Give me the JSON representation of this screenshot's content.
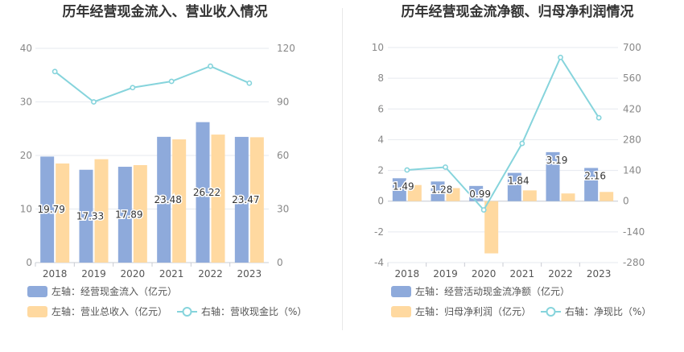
{
  "chart_data": [
    {
      "type": "bar",
      "title": "历年经营现金流入、营业收入情况",
      "categories": [
        "2018",
        "2019",
        "2020",
        "2021",
        "2022",
        "2023"
      ],
      "y_left": {
        "ticks": [
          "0",
          "10",
          "20",
          "30",
          "40"
        ],
        "range": [
          0,
          40
        ]
      },
      "y_right": {
        "ticks": [
          "0",
          "30",
          "60",
          "90",
          "120"
        ],
        "range": [
          0,
          120
        ]
      },
      "series": [
        {
          "name": "左轴：经营现金流入（亿元）",
          "type": "bar",
          "axis": "left",
          "color": "#8eaadb",
          "values": [
            19.79,
            17.33,
            17.89,
            23.48,
            26.22,
            23.47
          ],
          "labels": [
            "19.79",
            "17.33",
            "17.89",
            "23.48",
            "26.22",
            "23.47"
          ]
        },
        {
          "name": "左轴：营业总收入（亿元）",
          "type": "bar",
          "axis": "left",
          "color": "#ffd9a0",
          "values": [
            18.5,
            19.3,
            18.2,
            23.0,
            23.9,
            23.4
          ]
        },
        {
          "name": "右轴：营收现金比（%）",
          "type": "line",
          "axis": "right",
          "color": "#86d4dc",
          "values": [
            107,
            90,
            98,
            101.5,
            110,
            100.5
          ]
        }
      ],
      "grid": true
    },
    {
      "type": "bar",
      "title": "历年经营现金流净额、归母净利润情况",
      "categories": [
        "2018",
        "2019",
        "2020",
        "2021",
        "2022",
        "2023"
      ],
      "y_left": {
        "ticks": [
          "-4",
          "-2",
          "0",
          "2",
          "4",
          "6",
          "8",
          "10"
        ],
        "range": [
          -4,
          10
        ]
      },
      "y_right": {
        "ticks": [
          "-280",
          "-140",
          "0",
          "140",
          "280",
          "420",
          "560",
          "700"
        ],
        "range": [
          -280,
          700
        ]
      },
      "series": [
        {
          "name": "左轴：经营活动现金流净额（亿元）",
          "type": "bar",
          "axis": "left",
          "color": "#8eaadb",
          "values": [
            1.49,
            1.28,
            0.99,
            1.84,
            3.19,
            2.16
          ],
          "labels": [
            "1.49",
            "1.28",
            "0.99",
            "1.84",
            "3.19",
            "2.16"
          ]
        },
        {
          "name": "左轴：归母净利润（亿元）",
          "type": "bar",
          "axis": "left",
          "color": "#ffd9a0",
          "values": [
            1.05,
            0.85,
            -3.4,
            0.7,
            0.5,
            0.6
          ]
        },
        {
          "name": "右轴：净现比（%）",
          "type": "line",
          "axis": "right",
          "color": "#86d4dc",
          "values": [
            142,
            155,
            -40,
            263,
            655,
            380
          ]
        }
      ],
      "grid": true
    }
  ]
}
